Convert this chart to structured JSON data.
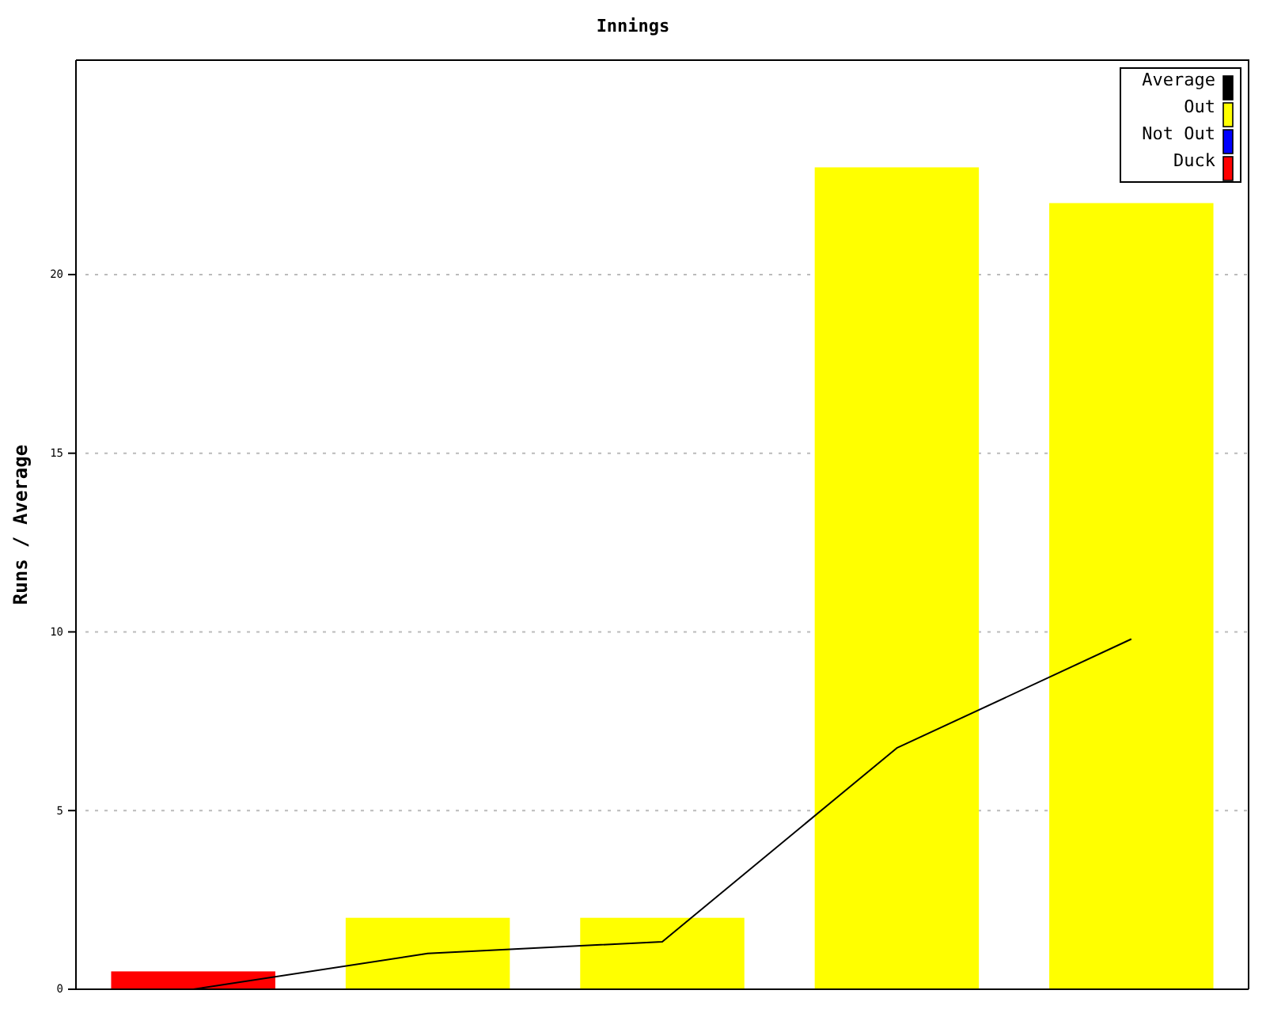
{
  "chart_data": {
    "type": "bar",
    "title": "Innings",
    "ylabel": "Runs / Average",
    "categories": [
      null,
      null,
      null,
      null,
      null
    ],
    "series": [
      {
        "name": "Average",
        "type": "line",
        "color": "#000000",
        "values": [
          0,
          1,
          1.33,
          6.75,
          9.8
        ]
      },
      {
        "name": "Out",
        "color": "#ffff00",
        "values": [
          null,
          2,
          2,
          23,
          22
        ]
      },
      {
        "name": "Not Out",
        "color": "#0000ff",
        "values": [
          null,
          null,
          null,
          null,
          null
        ]
      },
      {
        "name": "Duck",
        "color": "#ff0000",
        "values": [
          0.5,
          null,
          null,
          null,
          null
        ]
      }
    ],
    "ylim": [
      0,
      26
    ],
    "yticks": [
      0,
      5,
      10,
      15,
      20
    ],
    "grid": "y",
    "legend": "top right",
    "marker": "none"
  }
}
